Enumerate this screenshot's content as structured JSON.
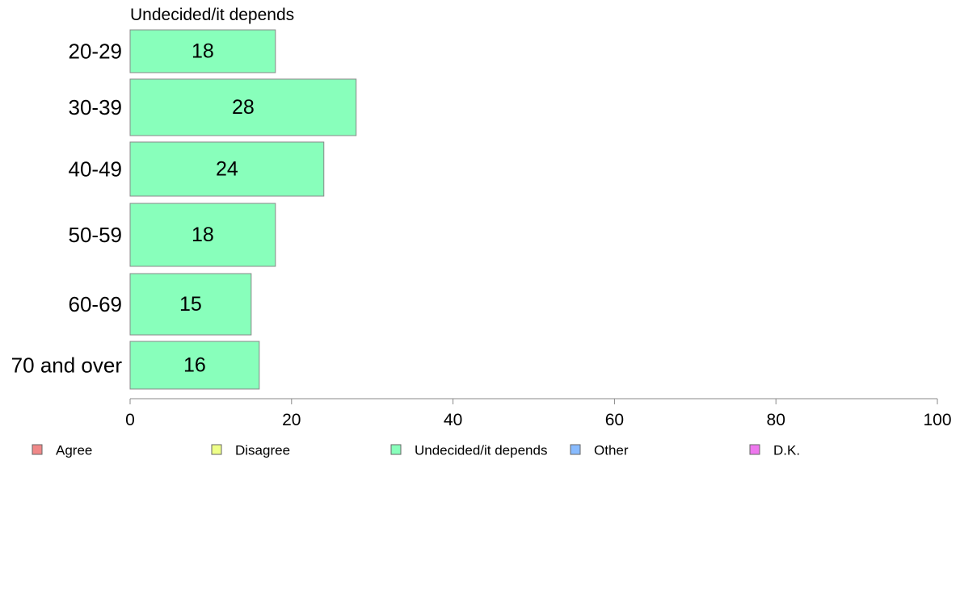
{
  "chart_data": {
    "type": "bar",
    "orientation": "horizontal",
    "title": "Undecided/it depends",
    "categories": [
      "20-29",
      "30-39",
      "40-49",
      "50-59",
      "60-69",
      "70 and over"
    ],
    "series": [
      {
        "name": "Undecided/it depends",
        "color": "#88ffbb",
        "values": [
          18,
          28,
          24,
          18,
          15,
          16
        ],
        "value_labels": [
          "18",
          "28",
          "24",
          "18",
          "15",
          "16"
        ]
      }
    ],
    "xlim": [
      0,
      100
    ],
    "xticks": [
      0,
      20,
      40,
      60,
      80,
      100
    ],
    "grid": false,
    "legend": {
      "position": "bottom",
      "items": [
        {
          "label": "Agree",
          "color": "#f08888"
        },
        {
          "label": "Disagree",
          "color": "#eeff88"
        },
        {
          "label": "Undecided/it depends",
          "color": "#88ffbb"
        },
        {
          "label": "Other",
          "color": "#88bbff"
        },
        {
          "label": "D.K.",
          "color": "#ee77ee"
        }
      ]
    }
  }
}
